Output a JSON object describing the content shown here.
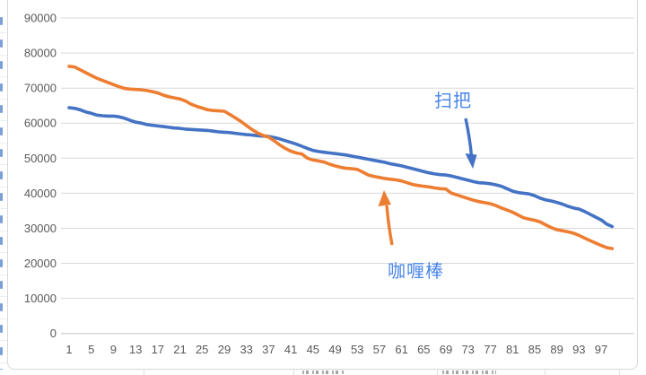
{
  "chart_data": {
    "type": "line",
    "title": "",
    "xlabel": "",
    "ylabel": "",
    "x_range": [
      1,
      99
    ],
    "x_tick_labels": [
      "1",
      "5",
      "9",
      "13",
      "17",
      "21",
      "25",
      "29",
      "33",
      "37",
      "41",
      "45",
      "49",
      "53",
      "57",
      "61",
      "65",
      "69",
      "73",
      "77",
      "81",
      "85",
      "89",
      "93",
      "97"
    ],
    "y_ticks": [
      0,
      10000,
      20000,
      30000,
      40000,
      50000,
      60000,
      70000,
      80000,
      90000
    ],
    "ylim": [
      0,
      90000
    ],
    "grid": true,
    "legend_position": "none",
    "series": [
      {
        "name": "扫把",
        "color": "#4472C4",
        "values": [
          64400,
          64200,
          63800,
          63200,
          62800,
          62300,
          62100,
          62000,
          62000,
          61800,
          61400,
          60800,
          60300,
          60000,
          59600,
          59400,
          59200,
          59000,
          58800,
          58600,
          58500,
          58300,
          58200,
          58100,
          58000,
          57900,
          57700,
          57500,
          57400,
          57300,
          57100,
          56900,
          56700,
          56600,
          56400,
          56300,
          56200,
          55900,
          55500,
          55000,
          54500,
          54000,
          53400,
          52800,
          52200,
          51900,
          51700,
          51500,
          51300,
          51100,
          50900,
          50600,
          50300,
          50000,
          49700,
          49400,
          49100,
          48800,
          48400,
          48100,
          47800,
          47400,
          47000,
          46600,
          46200,
          45800,
          45500,
          45300,
          45200,
          44900,
          44500,
          44100,
          43700,
          43300,
          43000,
          42900,
          42700,
          42400,
          42000,
          41300,
          40600,
          40200,
          40000,
          39800,
          39300,
          38600,
          38100,
          37800,
          37400,
          36900,
          36300,
          35800,
          35500,
          34800,
          34000,
          33200,
          32400,
          31200,
          30500
        ]
      },
      {
        "name": "咖喱棒",
        "color": "#ED7D31",
        "values": [
          76200,
          76000,
          75200,
          74400,
          73600,
          72800,
          72200,
          71600,
          71000,
          70400,
          69900,
          69700,
          69600,
          69500,
          69300,
          69000,
          68600,
          68000,
          67500,
          67200,
          66900,
          66300,
          65400,
          64800,
          64300,
          63800,
          63600,
          63500,
          63400,
          62500,
          61500,
          60500,
          59300,
          58200,
          57200,
          56500,
          56000,
          55000,
          53800,
          52800,
          52000,
          51500,
          51200,
          50000,
          49500,
          49200,
          48900,
          48300,
          47800,
          47400,
          47100,
          47000,
          46800,
          46000,
          45200,
          44800,
          44500,
          44200,
          44000,
          43800,
          43500,
          43000,
          42500,
          42200,
          42000,
          41800,
          41500,
          41300,
          41200,
          40000,
          39500,
          39000,
          38500,
          38000,
          37600,
          37300,
          37000,
          36500,
          35800,
          35200,
          34600,
          33800,
          33000,
          32600,
          32300,
          31800,
          31000,
          30200,
          29600,
          29300,
          29000,
          28600,
          28000,
          27200,
          26500,
          25800,
          25100,
          24500,
          24200
        ]
      }
    ],
    "annotations": [
      {
        "text": "扫把",
        "text_color": "#4a86e8",
        "arrow_color": "#4472C4",
        "points_to_series": "扫把"
      },
      {
        "text": "咖喱棒",
        "text_color": "#4a86e8",
        "arrow_color": "#ED7D31",
        "points_to_series": "咖喱棒"
      }
    ]
  },
  "colors": {
    "gridline": "#d9d9d9",
    "axis_line": "#c6c6c6",
    "axis_text": "#595959",
    "chart_border": "#d9d9d9",
    "background": "#ffffff"
  }
}
